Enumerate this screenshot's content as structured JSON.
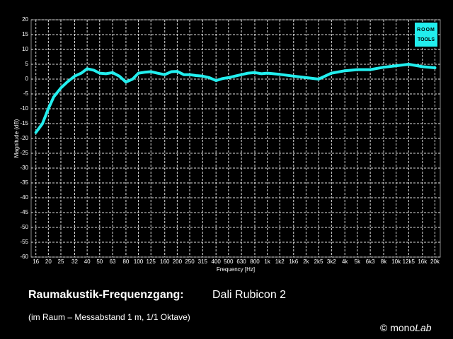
{
  "chart_data": {
    "type": "line",
    "title": "Raumakustik-Frequenzgang:",
    "title_model": "Dali Rubicon 2",
    "subtitle": "(im Raum – Messabstand 1 m, 1/1 Oktave)",
    "credit_prefix": "© mono",
    "credit_suffix": "Lab",
    "logo": [
      "ROOM",
      "TOOLS"
    ],
    "x_label": "Frequency [Hz]",
    "y_label": "Magnitude (dB)",
    "color": "#22eeee",
    "x_log": true,
    "grid": true,
    "xlim": [
      14.7,
      22000
    ],
    "ylim": [
      -60,
      20
    ],
    "yticks": [
      20,
      15,
      10,
      5,
      0,
      -5,
      -10,
      -15,
      -20,
      -25,
      -30,
      -35,
      -40,
      -45,
      -50,
      -55,
      -60
    ],
    "xticks": [
      16,
      20,
      25,
      32,
      40,
      50,
      63,
      80,
      100,
      125,
      160,
      200,
      250,
      315,
      400,
      500,
      630,
      800,
      {
        "value": 1000,
        "label": "1k"
      },
      {
        "value": 1250,
        "label": "1k2"
      },
      {
        "value": 1600,
        "label": "1k6"
      },
      {
        "value": 2000,
        "label": "2k"
      },
      {
        "value": 2500,
        "label": "2k5"
      },
      {
        "value": 3150,
        "label": "3k2"
      },
      {
        "value": 4000,
        "label": "4k"
      },
      {
        "value": 5000,
        "label": "5k"
      },
      {
        "value": 6300,
        "label": "6k3"
      },
      {
        "value": 8000,
        "label": "8k"
      },
      {
        "value": 10000,
        "label": "10k"
      },
      {
        "value": 12500,
        "label": "12k5"
      },
      {
        "value": 16000,
        "label": "16k"
      },
      {
        "value": 20000,
        "label": "20k"
      }
    ],
    "x": [
      16,
      18,
      20,
      22,
      25,
      28,
      32,
      36,
      40,
      45,
      50,
      56,
      63,
      71,
      80,
      90,
      100,
      112,
      125,
      140,
      160,
      180,
      200,
      225,
      250,
      280,
      315,
      355,
      400,
      450,
      500,
      560,
      630,
      710,
      800,
      900,
      1000,
      1250,
      1600,
      2000,
      2500,
      3150,
      4000,
      5000,
      6300,
      8000,
      10000,
      12500,
      16000,
      20000
    ],
    "values": [
      -18,
      -15,
      -10,
      -6,
      -3,
      -1,
      1,
      2,
      3.5,
      3,
      2,
      1.8,
      2.2,
      1,
      -1,
      0,
      2,
      2.3,
      2.5,
      2,
      1.5,
      2.5,
      2.6,
      1.5,
      1.5,
      1.2,
      1,
      0.5,
      -0.5,
      0.2,
      0.5,
      1,
      1.5,
      2,
      2.2,
      1.8,
      2,
      1.6,
      1,
      0.5,
      0,
      2,
      2.8,
      3.2,
      3.2,
      4,
      4.5,
      5,
      4.2,
      3.8
    ]
  }
}
